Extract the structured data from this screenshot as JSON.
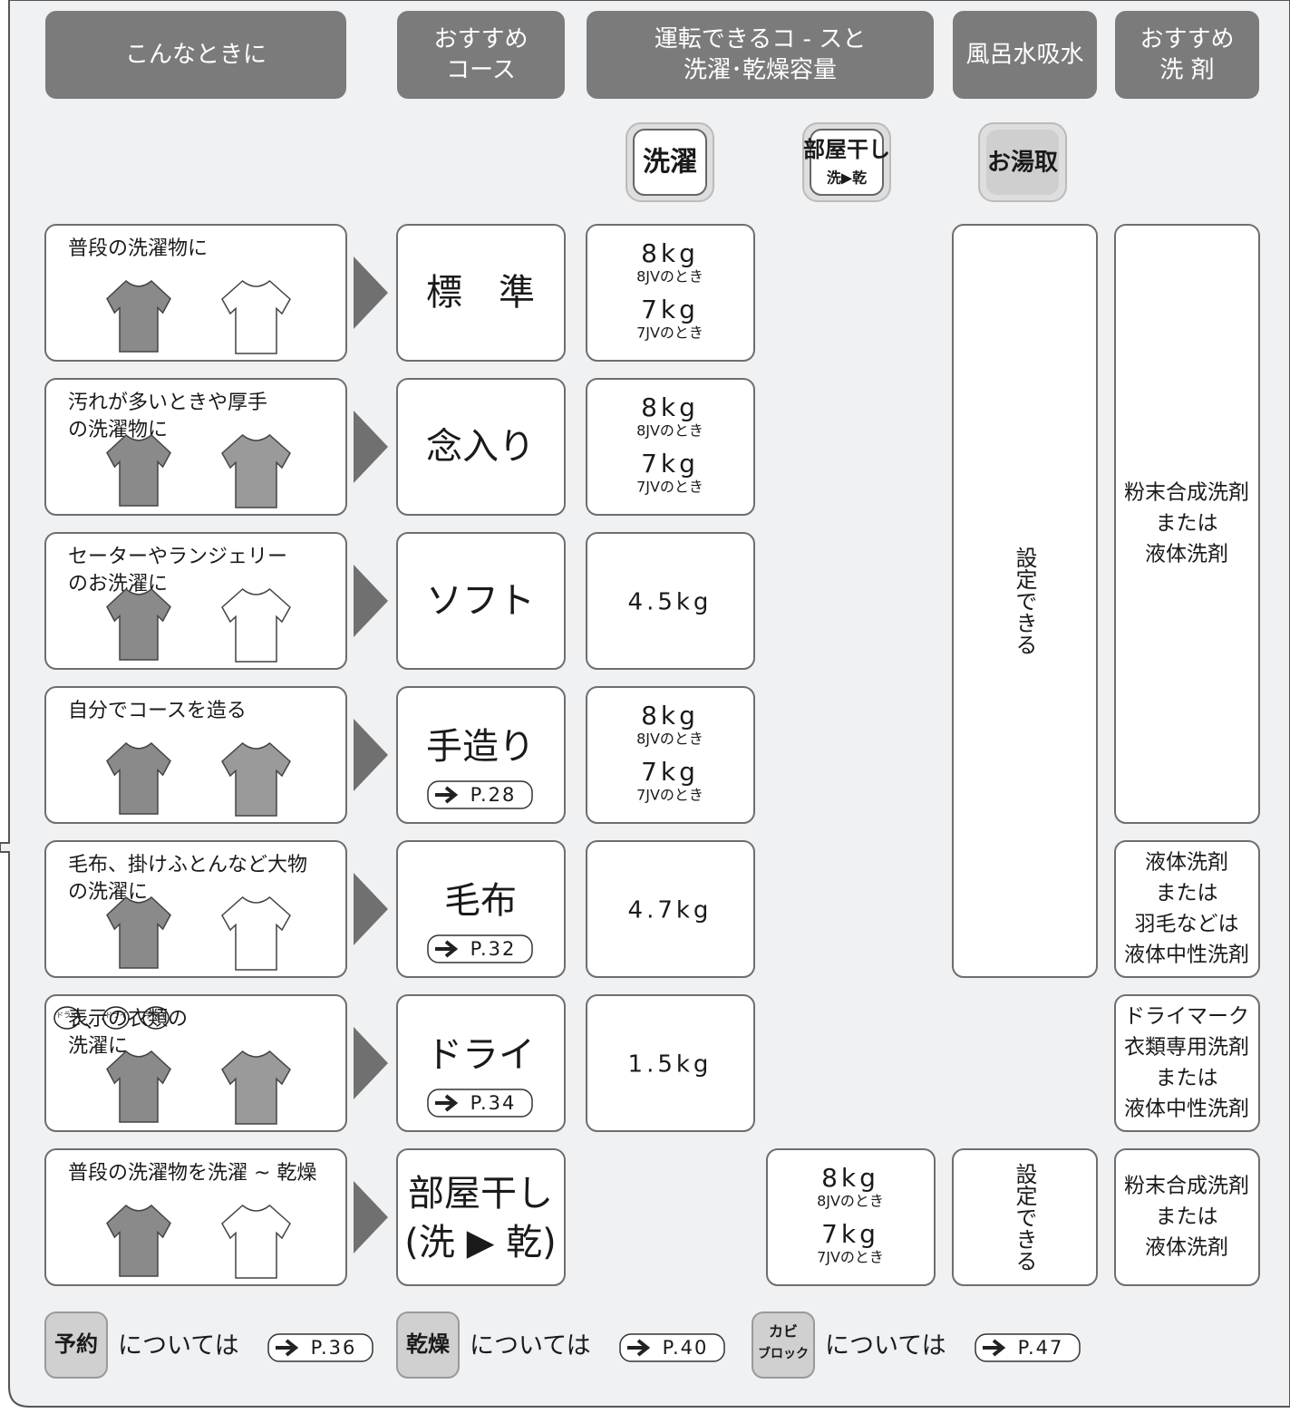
{
  "header": {
    "columns": [
      [
        "こんなときに"
      ],
      [
        "おすすめ",
        "コース"
      ],
      [
        "運転できるコ - スと",
        "洗濯･乾燥容量"
      ],
      [
        "風呂水吸水"
      ],
      [
        "おすすめ",
        "洗 剤"
      ]
    ]
  },
  "course_buttons": [
    [
      "洗濯"
    ],
    [
      "部屋干し",
      "洗▶乾"
    ],
    [
      "お湯取"
    ]
  ],
  "rows": [
    {
      "situation": [
        "普段の洗濯物に"
      ],
      "course": [
        "標　準"
      ],
      "wash_capacity": [
        {
          "amount": "8kg",
          "note": "8JVのとき"
        },
        {
          "amount": "7kg",
          "note": "7JVのとき"
        }
      ]
    },
    {
      "situation": [
        "汚れが多いときや厚手",
        "の洗濯物に"
      ],
      "course": [
        "念入り"
      ],
      "wash_capacity": [
        {
          "amount": "8kg",
          "note": "8JVのとき"
        },
        {
          "amount": "7kg",
          "note": "7JVのとき"
        }
      ]
    },
    {
      "situation": [
        "セーターやランジェリー",
        "のお洗濯に"
      ],
      "course": [
        "ソフト"
      ],
      "wash_capacity": [
        {
          "amount": "4.5kg"
        }
      ]
    },
    {
      "situation": [
        "自分でコースを造る"
      ],
      "course": [
        "手造り"
      ],
      "page_ref": "P.28",
      "wash_capacity": [
        {
          "amount": "8kg",
          "note": "8JVのとき"
        },
        {
          "amount": "7kg",
          "note": "7JVのとき"
        }
      ]
    },
    {
      "situation": [
        "毛布、掛けふとんなど大物",
        "の洗濯に"
      ],
      "course": [
        "毛布"
      ],
      "page_ref": "P.32",
      "wash_capacity": [
        {
          "amount": "4.7kg"
        }
      ]
    },
    {
      "care_symbols": [
        "ドライ",
        "ドライ",
        "手洗イ"
      ],
      "symbol_separator": "、",
      "situation": [
        "表示の衣類の",
        "洗濯に"
      ],
      "course": [
        "ドライ"
      ],
      "page_ref": "P.34",
      "wash_capacity": [
        {
          "amount": "1.5kg"
        }
      ]
    },
    {
      "situation": [
        "普段の洗濯物を洗濯 ~ 乾燥"
      ],
      "course": [
        "部屋干し",
        "(洗 ▶ 乾)"
      ],
      "dry_capacity": [
        {
          "amount": "8kg",
          "note": "8JVのとき"
        },
        {
          "amount": "7kg",
          "note": "7JVのとき"
        }
      ]
    }
  ],
  "bath_water": [
    "設定できる",
    "設定できる"
  ],
  "detergents": [
    [
      "粉末合成洗剤",
      "または",
      "液体洗剤"
    ],
    [
      "液体洗剤",
      "または",
      "羽毛などは",
      "液体中性洗剤"
    ],
    [
      "ドライマーク",
      "衣類専用洗剤",
      "または",
      "液体中性洗剤"
    ],
    [
      "粉末合成洗剤",
      "または",
      "液体洗剤"
    ]
  ],
  "footer": [
    {
      "button": [
        "予約"
      ],
      "text": "については",
      "page_ref": "P.36"
    },
    {
      "button": [
        "乾燥"
      ],
      "text": "については",
      "page_ref": "P.40"
    },
    {
      "button": [
        "カビ",
        "ブロック"
      ],
      "text": "については",
      "page_ref": "P.47"
    }
  ]
}
